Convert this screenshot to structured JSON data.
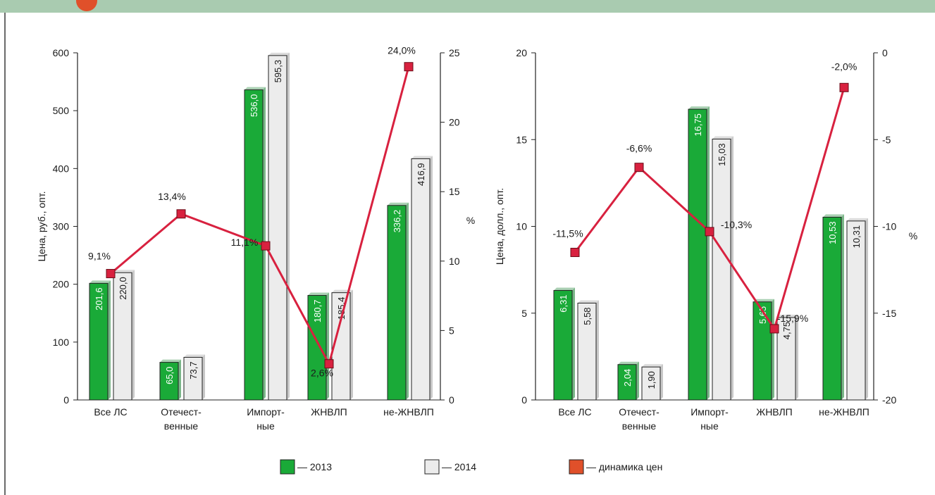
{
  "colors": {
    "y2013": "#1aaa38",
    "y2014": "#ececec",
    "trend": "#d8213f",
    "trend_marker": "#d8213f",
    "legend_trend": "#e0502a"
  },
  "legend": [
    {
      "key": "y2013",
      "label": "— 2013"
    },
    {
      "key": "y2014",
      "label": "— 2014"
    },
    {
      "key": "trend",
      "label": "— динамика цен"
    }
  ],
  "chart_data": [
    {
      "type": "bar",
      "ylabel": "Цена, руб., опт.",
      "y2label": "%",
      "ylim": [
        0,
        600
      ],
      "yticks": [
        0,
        100,
        200,
        300,
        400,
        500,
        600
      ],
      "y2lim": [
        0,
        25
      ],
      "y2ticks": [
        0,
        5,
        10,
        15,
        20,
        25
      ],
      "categories": [
        [
          "Все ЛС"
        ],
        [
          "Отечест-",
          "венные"
        ],
        [
          "Импорт-",
          "ные"
        ],
        [
          "ЖНВЛП"
        ],
        [
          "не-ЖНВЛП"
        ]
      ],
      "series": [
        {
          "name": "2013",
          "values": [
            201.6,
            65.0,
            536.0,
            180.7,
            336.2
          ],
          "labels": [
            "201,6",
            "65,0",
            "536,0",
            "180,7",
            "336,2"
          ]
        },
        {
          "name": "2014",
          "values": [
            220.0,
            73.7,
            595.3,
            185.4,
            416.9
          ],
          "labels": [
            "220,0",
            "73,7",
            "595,3",
            "185,4",
            "416,9"
          ]
        }
      ],
      "trend": {
        "name": "динамика цен",
        "values": [
          9.1,
          13.4,
          11.1,
          2.6,
          24.0
        ],
        "labels": [
          "9,1%",
          "13,4%",
          "11,1%",
          "2,6%",
          "24,0%"
        ]
      }
    },
    {
      "type": "bar",
      "ylabel": "Цена, долл., опт.",
      "y2label": "%",
      "ylim": [
        0,
        20
      ],
      "yticks": [
        0,
        5,
        10,
        15,
        20
      ],
      "y2lim": [
        -20,
        0
      ],
      "y2ticks": [
        -20,
        -15,
        -10,
        -5,
        0
      ],
      "categories": [
        [
          "Все ЛС"
        ],
        [
          "Отечест-",
          "венные"
        ],
        [
          "Импорт-",
          "ные"
        ],
        [
          "ЖНВЛП"
        ],
        [
          "не-ЖНВЛП"
        ]
      ],
      "series": [
        {
          "name": "2013",
          "values": [
            6.31,
            2.04,
            16.75,
            5.65,
            10.53
          ],
          "labels": [
            "6,31",
            "2,04",
            "16,75",
            "5,65",
            "10,53"
          ]
        },
        {
          "name": "2014",
          "values": [
            5.58,
            1.9,
            15.03,
            4.75,
            10.31
          ],
          "labels": [
            "5,58",
            "1,90",
            "15,03",
            "4,75",
            "10,31"
          ]
        }
      ],
      "trend": {
        "name": "динамика цен",
        "values": [
          -11.5,
          -6.6,
          -10.3,
          -15.9,
          -2.0
        ],
        "labels": [
          "-11,5%",
          "-6,6%",
          "-10,3%",
          "-15,9%",
          "-2,0%"
        ]
      }
    }
  ]
}
